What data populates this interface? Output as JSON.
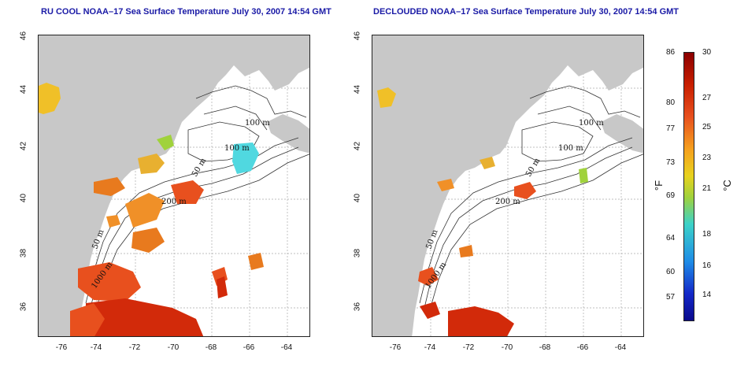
{
  "titles": {
    "left": "RU COOL NOAA–17 Sea Surface Temperature July 30, 2007 14:54 GMT",
    "right": "DECLOUDED NOAA–17 Sea Surface Temperature July 30, 2007 14:54 GMT"
  },
  "x_ticks": [
    "-76",
    "-74",
    "-72",
    "-70",
    "-68",
    "-66",
    "-64"
  ],
  "y_ticks": [
    "46",
    "44",
    "42",
    "40",
    "38",
    "36"
  ],
  "contour_labels": {
    "m100a": "100 m",
    "m100b": "100 m",
    "m50a": "50 m",
    "m200": "200 m",
    "m50b": "50 m",
    "m1000": "1000 m"
  },
  "colorbar": {
    "fahrenheit": [
      "86",
      "80",
      "77",
      "73",
      "69",
      "64",
      "60",
      "57"
    ],
    "celsius": [
      "30",
      "27",
      "25",
      "23",
      "21",
      "18",
      "16",
      "14"
    ],
    "unit_f": "°F",
    "unit_c": "°C"
  },
  "colors": {
    "land": "#c8c8c8",
    "title": "#1a1aa6",
    "warm": "#e8501e",
    "hot": "#d22a0a",
    "yellow": "#f0c028",
    "cyan": "#50d8e0"
  }
}
